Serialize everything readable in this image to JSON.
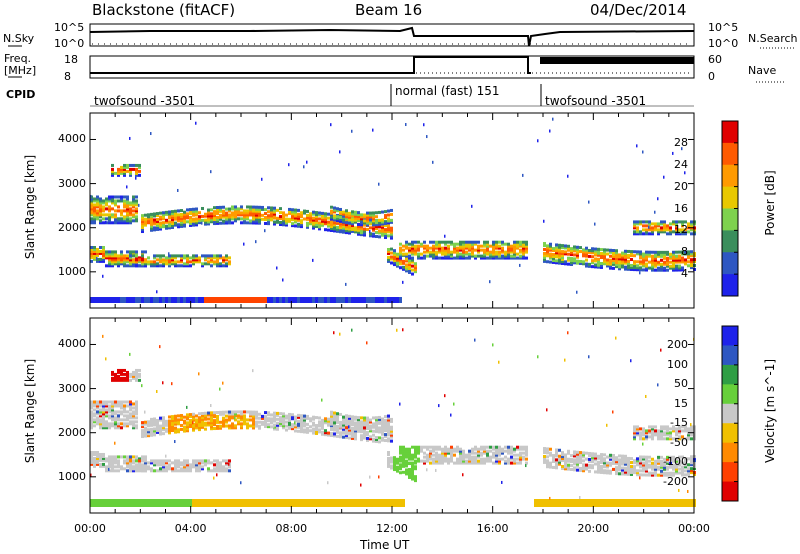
{
  "header": {
    "radar": "Blackstone (fitACF)",
    "beam": "Beam 16",
    "date": "04/Dec/2014"
  },
  "summary": {
    "nsky_label": "N.Sky",
    "nsky_ticks": [
      "10^5",
      "10^0"
    ],
    "nsearch_label": "N.Search",
    "freq_label": "Freq.",
    "freq_unit": "[MHz]",
    "freq_ticks": [
      "18",
      "8"
    ],
    "nave_label": "Nave",
    "nave_ticks": [
      "60",
      "0"
    ],
    "cpid_label": "CPID",
    "cpid_modes": [
      {
        "label": "twofsound -3501",
        "start_hour": 0.0
      },
      {
        "label": "normal (fast) 151",
        "start_hour": 12.0
      },
      {
        "label": "twofsound -3501",
        "start_hour": 17.8
      }
    ],
    "freq_mhz_segments": [
      {
        "start_hour": 0.0,
        "end_hour": 12.0,
        "value": 10.5
      },
      {
        "start_hour": 12.0,
        "end_hour": 17.4,
        "value": 18.0
      },
      {
        "start_hour": 17.4,
        "end_hour": 24.0,
        "value": 10.5
      }
    ]
  },
  "chart_data": [
    {
      "type": "heatmap",
      "name": "power",
      "ylabel": "Slant Range [km]",
      "xlim": [
        0,
        24
      ],
      "ylim": [
        180,
        4600
      ],
      "yticks": [
        "1000",
        "2000",
        "3000",
        "4000"
      ],
      "colorbar_label": "Power [dB]",
      "colorbar_ticks": [
        "28",
        "24",
        "20",
        "16",
        "12",
        "8",
        "4"
      ],
      "colorbar_colors": [
        "#e00000",
        "#ff5a00",
        "#ff9a00",
        "#e8c800",
        "#7ed24e",
        "#3a8e5c",
        "#2e57c2",
        "#1e22ea"
      ]
    },
    {
      "type": "heatmap",
      "name": "velocity",
      "ylabel": "Slant Range [km]",
      "xlabel": "Time UT",
      "xlim": [
        0,
        24
      ],
      "ylim": [
        180,
        4600
      ],
      "yticks": [
        "1000",
        "2000",
        "3000",
        "4000"
      ],
      "xticks": [
        "00:00",
        "04:00",
        "08:00",
        "12:00",
        "16:00",
        "20:00",
        "00:00"
      ],
      "colorbar_label": "Velocity [m s^-1]",
      "colorbar_ticks": [
        "200",
        "100",
        "50",
        "15",
        "-15",
        "-50",
        "-100",
        "-200"
      ],
      "colorbar_colors": [
        "#1e22ea",
        "#2e57c2",
        "#2f9e44",
        "#67d03a",
        "#c8c8c8",
        "#f0c000",
        "#ff8a00",
        "#ff4000",
        "#e00000"
      ]
    }
  ]
}
